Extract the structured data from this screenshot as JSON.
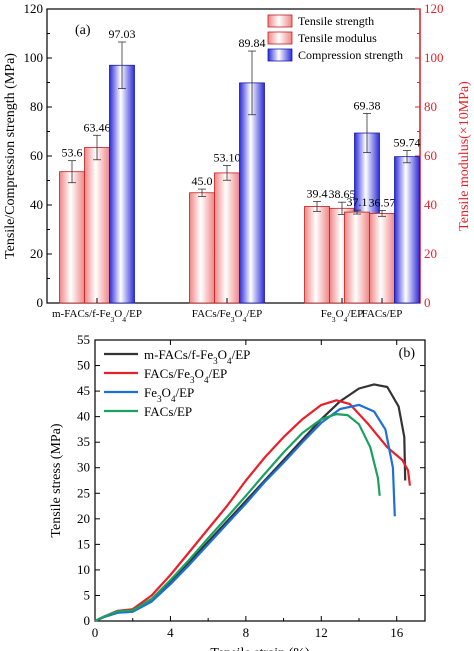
{
  "chart_data": [
    {
      "type": "bar",
      "panel_label": "(a)",
      "categories": [
        "m-FACs/f-Fe3O4/EP",
        "FACs/Fe3O4/EP",
        "Fe3O4/EP",
        "FACs/EP"
      ],
      "ylabel": "Tensile/Compression strength (MPa)",
      "ylabel_right": "Tensile modulus(×10MPa)",
      "ylim": [
        0,
        120
      ],
      "ylim_right": [
        0,
        120
      ],
      "yticks": [
        "0",
        "20",
        "40",
        "60",
        "80",
        "100",
        "120"
      ],
      "series": [
        {
          "name": "Tensile strength",
          "values": [
            53.6,
            45.0,
            39.4,
            37.1
          ],
          "labels": [
            "53.6",
            "45.0",
            "39.4",
            "37.1"
          ],
          "errors": [
            4.5,
            1.5,
            2.0,
            0.8
          ],
          "color": "#f7a8a8"
        },
        {
          "name": "Tensile modulus",
          "values": [
            63.46,
            53.1,
            38.65,
            36.57
          ],
          "labels": [
            "63.46",
            "53.10",
            "38.65",
            "36.57"
          ],
          "errors": [
            5.0,
            3.0,
            2.5,
            1.2
          ],
          "color": "#f9b3b3"
        },
        {
          "name": "Compression strength",
          "values": [
            97.03,
            89.84,
            69.38,
            59.74
          ],
          "labels": [
            "97.03",
            "89.84",
            "69.38",
            "59.74"
          ],
          "errors": [
            9.5,
            13.0,
            8.0,
            2.5
          ],
          "color": "#3a3ae6"
        }
      ],
      "legend_position": "top-right",
      "legend_label_colors": [
        "#000000",
        "#e8202a",
        "#000000"
      ],
      "right_axis_color": "#e8202a"
    },
    {
      "type": "line",
      "panel_label": "(b)",
      "xlabel": "Tensile strain (%)",
      "ylabel": "Tensile stress (MPa)",
      "xlim": [
        0,
        17.5
      ],
      "ylim": [
        0,
        55
      ],
      "xticks": [
        "0",
        "4",
        "8",
        "12",
        "16"
      ],
      "yticks": [
        "0",
        "5",
        "10",
        "15",
        "20",
        "25",
        "30",
        "35",
        "40",
        "45",
        "50",
        "55"
      ],
      "legend_position": "top-left",
      "series": [
        {
          "name": "m-FACs/f-Fe3O4/EP",
          "color": "#333333",
          "x": [
            0,
            0.5,
            1.2,
            2.0,
            3,
            4,
            5,
            6,
            7,
            8,
            9,
            10,
            11,
            12,
            13,
            14,
            14.8,
            15.5,
            16.1,
            16.4,
            16.45
          ],
          "y": [
            0,
            0.8,
            1.8,
            2.0,
            4.0,
            7.5,
            11.5,
            15.5,
            19.5,
            23.5,
            27.5,
            31.5,
            35.5,
            39.5,
            43.0,
            45.5,
            46.3,
            45.8,
            42.0,
            36.0,
            27.5
          ]
        },
        {
          "name": "FACs/Fe3O4/EP",
          "color": "#e8202a",
          "x": [
            0,
            0.5,
            1.2,
            2.0,
            3,
            4,
            5,
            6,
            7,
            8,
            9,
            10,
            11,
            12,
            12.8,
            13.5,
            14.5,
            15.5,
            16.3,
            16.6,
            16.7
          ],
          "y": [
            0,
            0.9,
            2.0,
            2.3,
            5.0,
            9.0,
            13.5,
            18.0,
            22.5,
            27.5,
            32.0,
            36.0,
            39.5,
            42.3,
            43.2,
            42.5,
            38.5,
            34.0,
            31.5,
            29.5,
            26.5
          ]
        },
        {
          "name": "Fe3O4/EP",
          "color": "#1f6fd6",
          "x": [
            0,
            0.5,
            1.2,
            2.0,
            3,
            4,
            5,
            6,
            7,
            8,
            9,
            10,
            11,
            12,
            13,
            14,
            14.8,
            15.4,
            15.8,
            15.9
          ],
          "y": [
            0,
            0.8,
            1.6,
            1.8,
            3.8,
            7.2,
            11.0,
            15.0,
            19.0,
            23.0,
            27.2,
            31.0,
            35.0,
            38.8,
            41.5,
            42.3,
            41.0,
            37.5,
            30.0,
            20.5
          ]
        },
        {
          "name": "FACs/EP",
          "color": "#1aa060",
          "x": [
            0,
            0.5,
            1.2,
            2.0,
            3,
            4,
            5,
            6,
            7,
            8,
            9,
            10,
            11,
            12,
            12.8,
            13.4,
            14.0,
            14.6,
            15.0,
            15.1
          ],
          "y": [
            0,
            0.9,
            1.9,
            2.1,
            4.3,
            8.0,
            12.0,
            16.2,
            20.3,
            24.5,
            28.8,
            33.0,
            36.8,
            39.5,
            40.5,
            40.3,
            38.5,
            34.0,
            28.0,
            24.5
          ]
        }
      ]
    }
  ]
}
